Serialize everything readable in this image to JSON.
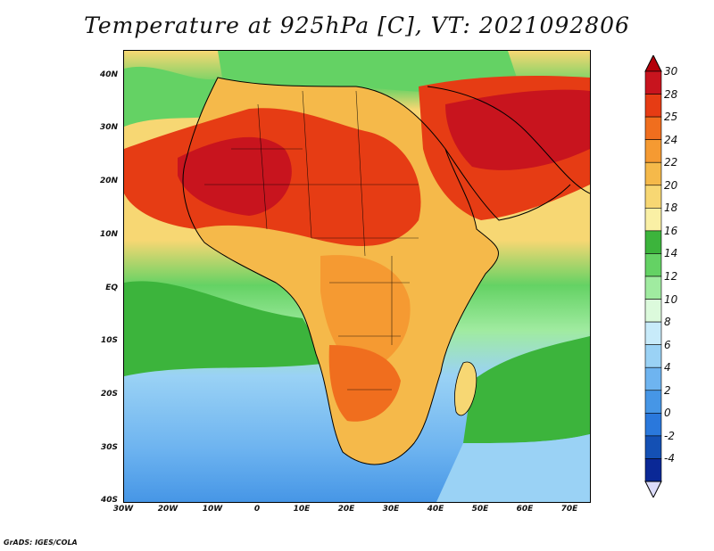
{
  "title": "Temperature at 925hPa [C], VT: 2021092806",
  "credit": "GrADS: IGES/COLA",
  "map": {
    "region": "Africa and Middle East",
    "lat_labels": [
      "40N",
      "30N",
      "20N",
      "10N",
      "EQ",
      "10S",
      "20S",
      "30S",
      "40S"
    ],
    "lon_labels": [
      "30W",
      "20W",
      "10W",
      "0",
      "10E",
      "20E",
      "30E",
      "40E",
      "50E",
      "60E",
      "70E"
    ],
    "lon_range": [
      -30,
      75
    ],
    "lat_range": [
      -40,
      45
    ]
  },
  "colorbar": {
    "labels": [
      "30",
      "28",
      "25",
      "24",
      "22",
      "20",
      "18",
      "16",
      "14",
      "12",
      "10",
      "8",
      "6",
      "4",
      "2",
      "0",
      "-2",
      "-4"
    ],
    "colors": [
      "#c8141e",
      "#e63c14",
      "#f06e1e",
      "#f59a32",
      "#f5b94a",
      "#f7d773",
      "#faf0a5",
      "#3cb43c",
      "#64d264",
      "#a0eba0",
      "#dcfadc",
      "#c8ebfa",
      "#9ad2f5",
      "#6eb4f0",
      "#4696e6",
      "#2a78dc",
      "#1450b4",
      "#0a2896"
    ],
    "top_arrow_color": "#b4000a",
    "bottom_arrow_color": "#dcdcfa"
  }
}
